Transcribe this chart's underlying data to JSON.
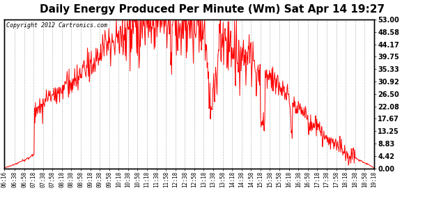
{
  "title": "Daily Energy Produced Per Minute (Wm) Sat Apr 14 19:27",
  "copyright_text": "Copyright 2012 Cartronics.com",
  "line_color": "#ff0000",
  "background_color": "#ffffff",
  "plot_bg_color": "#ffffff",
  "grid_color": "#bbbbbb",
  "title_fontsize": 11,
  "yticks": [
    0.0,
    4.42,
    8.83,
    13.25,
    17.67,
    22.08,
    26.5,
    30.92,
    35.33,
    39.75,
    44.17,
    48.58,
    53.0
  ],
  "ymin": 0.0,
  "ymax": 53.0,
  "xtick_labels": [
    "06:16",
    "06:38",
    "06:58",
    "07:18",
    "07:38",
    "07:58",
    "08:18",
    "08:38",
    "08:58",
    "09:18",
    "09:38",
    "09:58",
    "10:18",
    "10:38",
    "10:58",
    "11:18",
    "11:38",
    "11:58",
    "12:18",
    "12:38",
    "12:58",
    "13:18",
    "13:38",
    "13:58",
    "14:18",
    "14:38",
    "14:58",
    "15:18",
    "15:38",
    "15:58",
    "16:18",
    "16:38",
    "16:58",
    "17:18",
    "17:38",
    "17:58",
    "18:18",
    "18:38",
    "18:58",
    "19:18"
  ],
  "start_time": "06:16",
  "end_time": "19:18"
}
